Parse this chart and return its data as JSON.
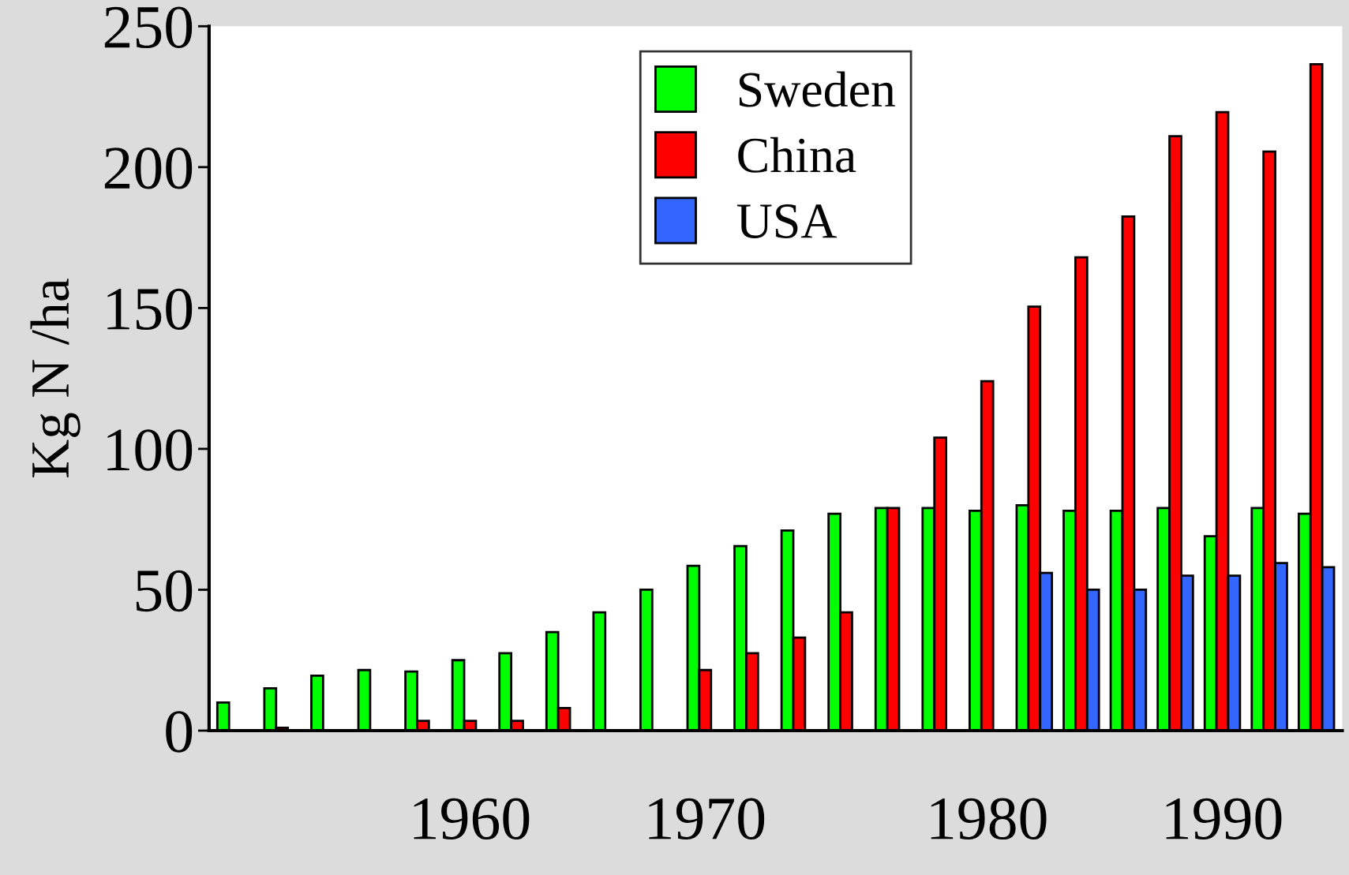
{
  "chart_data": {
    "type": "bar",
    "ylabel": "Kg N /ha",
    "categories": [
      null,
      null,
      null,
      null,
      null,
      "1960",
      null,
      null,
      null,
      null,
      "1970",
      null,
      null,
      null,
      null,
      null,
      "1980",
      null,
      null,
      null,
      null,
      "1990",
      null,
      null
    ],
    "series": [
      {
        "name": "Sweden",
        "color": "#00ff00",
        "values": [
          10,
          15,
          19.5,
          21.5,
          21,
          25,
          27.5,
          35,
          42,
          50,
          58.5,
          65.5,
          71,
          77,
          79,
          79,
          78,
          80,
          78,
          78,
          79,
          69,
          79,
          77
        ]
      },
      {
        "name": "China",
        "color": "#ff0000",
        "values": [
          null,
          1,
          null,
          null,
          3.5,
          3.5,
          3.5,
          8,
          null,
          null,
          21.5,
          27.5,
          33,
          42,
          79,
          104,
          124,
          150.5,
          168,
          182.5,
          211,
          219.5,
          205.5,
          236.5
        ]
      },
      {
        "name": "USA",
        "color": "#3366ff",
        "values": [
          null,
          null,
          null,
          null,
          null,
          null,
          null,
          null,
          null,
          null,
          null,
          null,
          null,
          null,
          null,
          null,
          null,
          56,
          50,
          50,
          55,
          55,
          59.5,
          58
        ]
      }
    ],
    "ylim": [
      0,
      250
    ],
    "yticks": [
      0,
      50,
      100,
      150,
      200,
      250
    ],
    "legend": "top",
    "grid": false
  }
}
